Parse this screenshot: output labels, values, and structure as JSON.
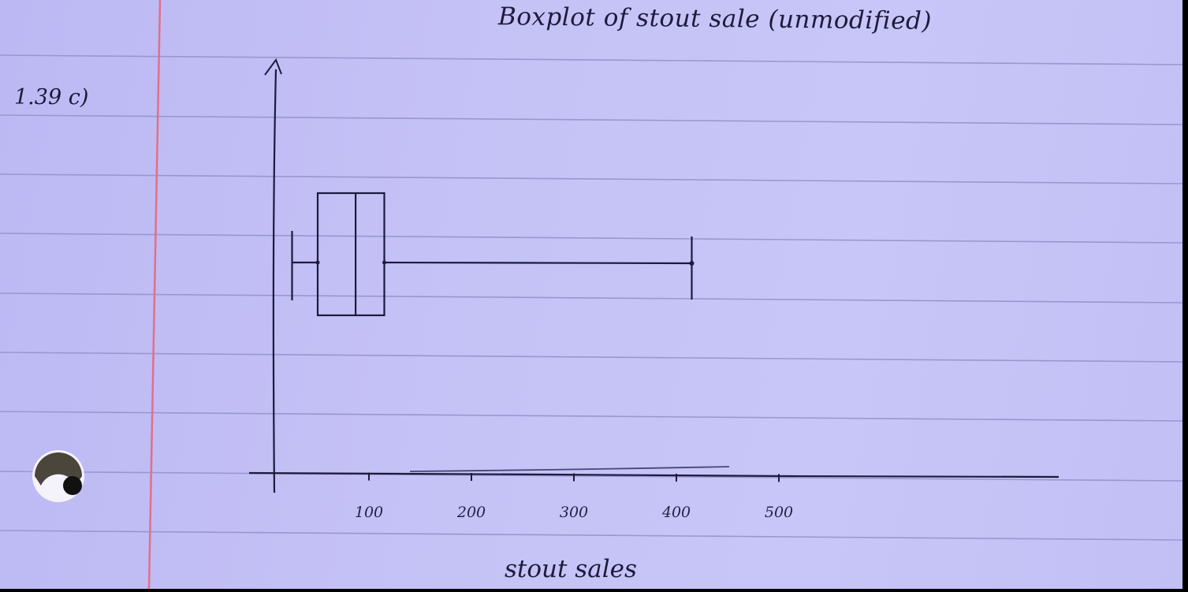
{
  "page": {
    "problem_label": "1.39 c)"
  },
  "chart_data": {
    "type": "boxplot",
    "orientation": "horizontal",
    "title": "Boxplot of stout sale (unmodified)",
    "xlabel": "stout sales",
    "ylabel": "",
    "xlim": [
      0,
      750
    ],
    "xticks": [
      100,
      200,
      300,
      400,
      500
    ],
    "grid": false,
    "box": {
      "whisker_low": 25,
      "q1": 50,
      "median": 87,
      "q3": 115,
      "whisker_high": 415
    }
  },
  "colors": {
    "paper": "#c4c1f6",
    "ruled_line": "#9a97cf",
    "margin_line": "#e0708a",
    "ink": "#1d1a3c"
  }
}
